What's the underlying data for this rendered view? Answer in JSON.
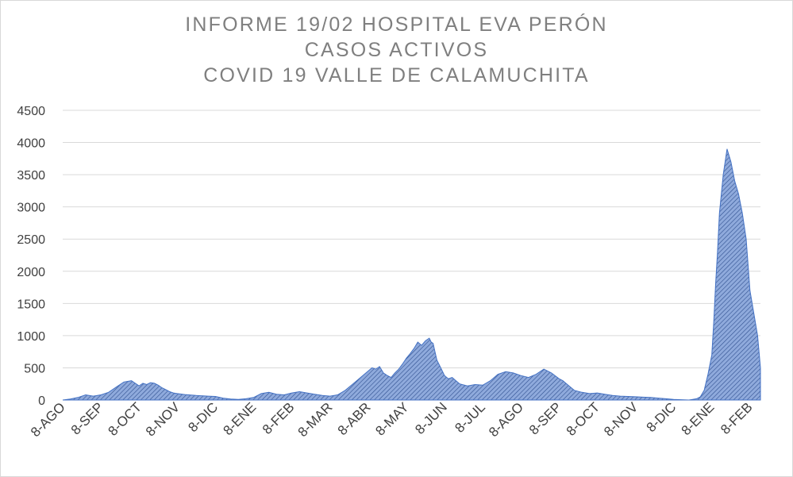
{
  "chart_data": {
    "type": "area",
    "title": [
      "INFORME 19/02 HOSPITAL EVA PERÓN",
      "CASOS ACTIVOS",
      "COVID 19 VALLE DE CALAMUCHITA"
    ],
    "xlabel": "",
    "ylabel": "",
    "ylim": [
      0,
      4500
    ],
    "yticks": [
      0,
      500,
      1000,
      1500,
      2000,
      2500,
      3000,
      3500,
      4000,
      4500
    ],
    "xtick_labels": [
      "8-AGO",
      "8-SEP",
      "8-OCT",
      "8-NOV",
      "8-DIC",
      "8-ENE",
      "8-FEB",
      "8-MAR",
      "8-ABR",
      "8-MAY",
      "8-JUN",
      "8-JUL",
      "8-AGO",
      "8-SEP",
      "8-OCT",
      "8-NOV",
      "8-DIC",
      "8-ENE",
      "8-FEB"
    ],
    "grid": true,
    "colors": {
      "fill": "#8faadc",
      "line": "#4472c4",
      "hatch": "#2f4f8f"
    },
    "series": [
      {
        "x_month_index": [
          0,
          0.2,
          0.4,
          0.6,
          0.8,
          1.0,
          1.2,
          1.4,
          1.6,
          1.8,
          2.0,
          2.1,
          2.2,
          2.3,
          2.4,
          2.5,
          2.6,
          2.7,
          2.8,
          2.9,
          3.0,
          3.2,
          3.5,
          3.8,
          4.0,
          4.2,
          4.4,
          4.6,
          4.8,
          5.0,
          5.2,
          5.4,
          5.6,
          5.8,
          6.0,
          6.2,
          6.4,
          6.6,
          6.8,
          7.0,
          7.2,
          7.4,
          7.6,
          7.8,
          8.0,
          8.1,
          8.2,
          8.3,
          8.4,
          8.5,
          8.6,
          8.7,
          8.8,
          8.9,
          9.0,
          9.1,
          9.2,
          9.3,
          9.4,
          9.5,
          9.6,
          9.65,
          9.7,
          9.75,
          9.8,
          9.9,
          10.0,
          10.1,
          10.2,
          10.3,
          10.4,
          10.6,
          10.8,
          11.0,
          11.2,
          11.4,
          11.6,
          11.8,
          12.0,
          12.2,
          12.4,
          12.6,
          12.8,
          13.0,
          13.1,
          13.2,
          13.3,
          13.4,
          13.6,
          13.8,
          14.0,
          14.2,
          14.4,
          14.6,
          14.8,
          15.0,
          15.2,
          15.4,
          15.6,
          15.8,
          16.0,
          16.2,
          16.4,
          16.5,
          16.6,
          16.7,
          16.8,
          16.9,
          17.0,
          17.05,
          17.1,
          17.15,
          17.2,
          17.3,
          17.4,
          17.5,
          17.6,
          17.7,
          17.8,
          17.9,
          18.0,
          18.2,
          18.4,
          18.6,
          18.8,
          19.0,
          19.2,
          19.4
        ],
        "values": [
          0,
          15,
          40,
          80,
          60,
          80,
          120,
          200,
          280,
          300,
          220,
          260,
          240,
          270,
          260,
          230,
          190,
          160,
          130,
          110,
          100,
          85,
          70,
          60,
          55,
          30,
          15,
          10,
          20,
          40,
          100,
          120,
          90,
          80,
          110,
          130,
          110,
          90,
          70,
          60,
          80,
          150,
          250,
          350,
          450,
          500,
          480,
          520,
          420,
          380,
          350,
          420,
          480,
          560,
          650,
          720,
          800,
          900,
          850,
          920,
          960,
          900,
          880,
          750,
          620,
          500,
          380,
          330,
          350,
          300,
          250,
          220,
          240,
          230,
          300,
          400,
          440,
          420,
          380,
          350,
          400,
          480,
          420,
          330,
          300,
          250,
          200,
          150,
          120,
          100,
          110,
          90,
          70,
          60,
          55,
          50,
          45,
          40,
          30,
          20,
          10,
          5,
          0,
          10,
          20,
          50,
          150,
          400,
          700,
          1200,
          1800,
          2300,
          2900,
          3500,
          3900,
          3700,
          3400,
          3200,
          2900,
          2500,
          1700,
          1000,
          500,
          300,
          150,
          130,
          120,
          140
        ]
      }
    ]
  }
}
